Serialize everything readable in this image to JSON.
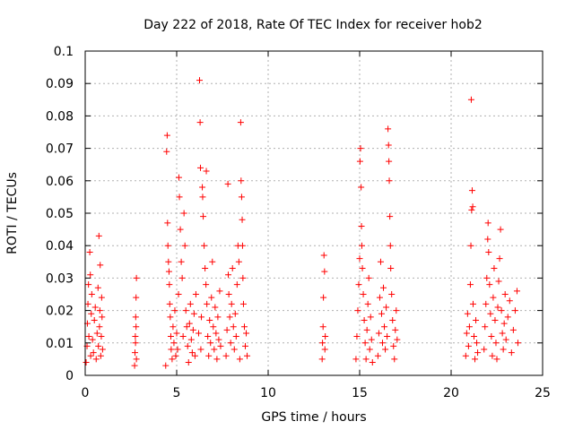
{
  "chart_data": {
    "type": "scatter",
    "title": "Day 222 of 2018, Rate Of TEC Index for receiver hob2",
    "xlabel": "GPS time / hours",
    "ylabel": "ROTI / TECUs",
    "xlim": [
      0,
      25
    ],
    "ylim": [
      0,
      0.1
    ],
    "x_ticks": [
      0,
      5,
      10,
      15,
      20,
      25
    ],
    "x_tick_labels": [
      "0",
      "5",
      "10",
      "15",
      "20",
      "25"
    ],
    "y_ticks": [
      0,
      0.01,
      0.02,
      0.03,
      0.04,
      0.05,
      0.06,
      0.07,
      0.08,
      0.09,
      0.1
    ],
    "y_tick_labels": [
      "0",
      "0.01",
      "0.02",
      "0.03",
      "0.04",
      "0.05",
      "0.06",
      "0.07",
      "0.08",
      "0.09",
      "0.1"
    ],
    "grid": true,
    "marker": "+",
    "colors": {
      "series": "#ff0000",
      "grid": "#b0b0b0",
      "axes": "#000000"
    },
    "series": [
      {
        "name": "hob2",
        "points": [
          [
            0.05,
            0.004
          ],
          [
            0.1,
            0.009
          ],
          [
            0.12,
            0.016
          ],
          [
            0.15,
            0.022
          ],
          [
            0.18,
            0.028
          ],
          [
            0.2,
            0.012
          ],
          [
            0.25,
            0.038
          ],
          [
            0.28,
            0.031
          ],
          [
            0.3,
            0.006
          ],
          [
            0.33,
            0.019
          ],
          [
            0.36,
            0.025
          ],
          [
            0.4,
            0.011
          ],
          [
            0.45,
            0.007
          ],
          [
            0.5,
            0.017
          ],
          [
            0.55,
            0.021
          ],
          [
            0.6,
            0.005
          ],
          [
            0.65,
            0.013
          ],
          [
            0.7,
            0.027
          ],
          [
            0.72,
            0.009
          ],
          [
            0.75,
            0.043
          ],
          [
            0.78,
            0.015
          ],
          [
            0.8,
            0.02
          ],
          [
            0.82,
            0.034
          ],
          [
            0.85,
            0.006
          ],
          [
            0.88,
            0.012
          ],
          [
            0.9,
            0.024
          ],
          [
            0.92,
            0.018
          ],
          [
            0.95,
            0.008
          ],
          [
            2.7,
            0.003
          ],
          [
            2.72,
            0.007
          ],
          [
            2.74,
            0.012
          ],
          [
            2.76,
            0.018
          ],
          [
            2.78,
            0.024
          ],
          [
            2.8,
            0.03
          ],
          [
            2.75,
            0.01
          ],
          [
            2.78,
            0.015
          ],
          [
            2.8,
            0.005
          ],
          [
            4.4,
            0.003
          ],
          [
            4.45,
            0.069
          ],
          [
            4.48,
            0.074
          ],
          [
            4.5,
            0.047
          ],
          [
            4.52,
            0.04
          ],
          [
            4.55,
            0.035
          ],
          [
            4.58,
            0.032
          ],
          [
            4.6,
            0.028
          ],
          [
            4.62,
            0.022
          ],
          [
            4.65,
            0.018
          ],
          [
            4.68,
            0.012
          ],
          [
            4.7,
            0.008
          ],
          [
            4.75,
            0.005
          ],
          [
            4.8,
            0.015
          ],
          [
            4.85,
            0.01
          ],
          [
            4.9,
            0.02
          ],
          [
            4.95,
            0.006
          ],
          [
            5.0,
            0.013
          ],
          [
            5.05,
            0.008
          ],
          [
            5.1,
            0.025
          ],
          [
            5.12,
            0.061
          ],
          [
            5.15,
            0.055
          ],
          [
            5.2,
            0.045
          ],
          [
            5.25,
            0.035
          ],
          [
            5.3,
            0.03
          ],
          [
            5.35,
            0.012
          ],
          [
            5.4,
            0.05
          ],
          [
            5.45,
            0.04
          ],
          [
            5.5,
            0.02
          ],
          [
            5.55,
            0.015
          ],
          [
            5.6,
            0.009
          ],
          [
            5.65,
            0.004
          ],
          [
            5.7,
            0.016
          ],
          [
            5.75,
            0.022
          ],
          [
            5.8,
            0.011
          ],
          [
            5.85,
            0.007
          ],
          [
            5.9,
            0.014
          ],
          [
            5.95,
            0.019
          ],
          [
            6.0,
            0.006
          ],
          [
            6.05,
            0.025
          ],
          [
            6.2,
            0.013
          ],
          [
            6.25,
            0.091
          ],
          [
            6.28,
            0.078
          ],
          [
            6.3,
            0.064
          ],
          [
            6.32,
            0.008
          ],
          [
            6.35,
            0.018
          ],
          [
            6.4,
            0.058
          ],
          [
            6.42,
            0.055
          ],
          [
            6.45,
            0.049
          ],
          [
            6.5,
            0.04
          ],
          [
            6.55,
            0.033
          ],
          [
            6.6,
            0.028
          ],
          [
            6.62,
            0.063
          ],
          [
            6.65,
            0.022
          ],
          [
            6.7,
            0.012
          ],
          [
            6.75,
            0.006
          ],
          [
            6.8,
            0.017
          ],
          [
            6.85,
            0.01
          ],
          [
            6.9,
            0.024
          ],
          [
            6.95,
            0.035
          ],
          [
            7.0,
            0.015
          ],
          [
            7.05,
            0.008
          ],
          [
            7.1,
            0.021
          ],
          [
            7.15,
            0.013
          ],
          [
            7.2,
            0.005
          ],
          [
            7.25,
            0.018
          ],
          [
            7.3,
            0.011
          ],
          [
            7.35,
            0.026
          ],
          [
            7.4,
            0.009
          ],
          [
            7.7,
            0.006
          ],
          [
            7.75,
            0.014
          ],
          [
            7.8,
            0.059
          ],
          [
            7.82,
            0.031
          ],
          [
            7.85,
            0.025
          ],
          [
            7.9,
            0.018
          ],
          [
            7.95,
            0.01
          ],
          [
            8.0,
            0.022
          ],
          [
            8.05,
            0.033
          ],
          [
            8.1,
            0.015
          ],
          [
            8.15,
            0.008
          ],
          [
            8.2,
            0.019
          ],
          [
            8.25,
            0.012
          ],
          [
            8.3,
            0.028
          ],
          [
            8.35,
            0.04
          ],
          [
            8.4,
            0.035
          ],
          [
            8.45,
            0.005
          ],
          [
            8.5,
            0.078
          ],
          [
            8.52,
            0.06
          ],
          [
            8.55,
            0.055
          ],
          [
            8.58,
            0.048
          ],
          [
            8.6,
            0.04
          ],
          [
            8.62,
            0.03
          ],
          [
            8.65,
            0.022
          ],
          [
            8.7,
            0.015
          ],
          [
            8.75,
            0.009
          ],
          [
            8.8,
            0.013
          ],
          [
            8.85,
            0.006
          ],
          [
            12.95,
            0.005
          ],
          [
            12.97,
            0.01
          ],
          [
            13.0,
            0.015
          ],
          [
            13.02,
            0.024
          ],
          [
            13.05,
            0.037
          ],
          [
            13.08,
            0.032
          ],
          [
            13.1,
            0.008
          ],
          [
            13.12,
            0.012
          ],
          [
            14.8,
            0.005
          ],
          [
            14.85,
            0.012
          ],
          [
            14.9,
            0.02
          ],
          [
            14.95,
            0.028
          ],
          [
            15.0,
            0.036
          ],
          [
            15.02,
            0.066
          ],
          [
            15.05,
            0.07
          ],
          [
            15.08,
            0.058
          ],
          [
            15.1,
            0.046
          ],
          [
            15.12,
            0.04
          ],
          [
            15.15,
            0.033
          ],
          [
            15.2,
            0.025
          ],
          [
            15.25,
            0.017
          ],
          [
            15.3,
            0.01
          ],
          [
            15.35,
            0.005
          ],
          [
            15.4,
            0.014
          ],
          [
            15.45,
            0.022
          ],
          [
            15.5,
            0.03
          ],
          [
            15.55,
            0.008
          ],
          [
            15.6,
            0.018
          ],
          [
            15.65,
            0.011
          ],
          [
            15.7,
            0.004
          ],
          [
            16.0,
            0.006
          ],
          [
            16.05,
            0.013
          ],
          [
            16.1,
            0.024
          ],
          [
            16.15,
            0.035
          ],
          [
            16.2,
            0.019
          ],
          [
            16.25,
            0.01
          ],
          [
            16.3,
            0.027
          ],
          [
            16.35,
            0.015
          ],
          [
            16.4,
            0.008
          ],
          [
            16.45,
            0.021
          ],
          [
            16.5,
            0.012
          ],
          [
            16.55,
            0.076
          ],
          [
            16.58,
            0.071
          ],
          [
            16.6,
            0.066
          ],
          [
            16.62,
            0.06
          ],
          [
            16.65,
            0.049
          ],
          [
            16.68,
            0.04
          ],
          [
            16.7,
            0.033
          ],
          [
            16.75,
            0.025
          ],
          [
            16.8,
            0.017
          ],
          [
            16.85,
            0.009
          ],
          [
            16.9,
            0.005
          ],
          [
            16.95,
            0.014
          ],
          [
            17.0,
            0.02
          ],
          [
            17.05,
            0.011
          ],
          [
            20.8,
            0.006
          ],
          [
            20.85,
            0.013
          ],
          [
            20.9,
            0.019
          ],
          [
            20.95,
            0.009
          ],
          [
            21.0,
            0.015
          ],
          [
            21.05,
            0.028
          ],
          [
            21.08,
            0.04
          ],
          [
            21.1,
            0.085
          ],
          [
            21.12,
            0.051
          ],
          [
            21.15,
            0.057
          ],
          [
            21.18,
            0.052
          ],
          [
            21.2,
            0.022
          ],
          [
            21.25,
            0.012
          ],
          [
            21.3,
            0.005
          ],
          [
            21.35,
            0.017
          ],
          [
            21.4,
            0.01
          ],
          [
            21.45,
            0.007
          ],
          [
            21.8,
            0.008
          ],
          [
            21.85,
            0.015
          ],
          [
            21.9,
            0.022
          ],
          [
            21.95,
            0.03
          ],
          [
            22.0,
            0.042
          ],
          [
            22.02,
            0.047
          ],
          [
            22.05,
            0.038
          ],
          [
            22.1,
            0.028
          ],
          [
            22.15,
            0.019
          ],
          [
            22.2,
            0.012
          ],
          [
            22.25,
            0.006
          ],
          [
            22.3,
            0.024
          ],
          [
            22.35,
            0.033
          ],
          [
            22.4,
            0.017
          ],
          [
            22.45,
            0.01
          ],
          [
            22.5,
            0.005
          ],
          [
            22.55,
            0.021
          ],
          [
            22.6,
            0.029
          ],
          [
            22.65,
            0.036
          ],
          [
            22.7,
            0.045
          ],
          [
            22.75,
            0.02
          ],
          [
            22.8,
            0.013
          ],
          [
            22.85,
            0.008
          ],
          [
            22.9,
            0.016
          ],
          [
            22.95,
            0.025
          ],
          [
            23.0,
            0.011
          ],
          [
            23.1,
            0.018
          ],
          [
            23.2,
            0.023
          ],
          [
            23.3,
            0.007
          ],
          [
            23.4,
            0.014
          ],
          [
            23.5,
            0.02
          ],
          [
            23.6,
            0.026
          ],
          [
            23.65,
            0.01
          ]
        ]
      }
    ]
  }
}
